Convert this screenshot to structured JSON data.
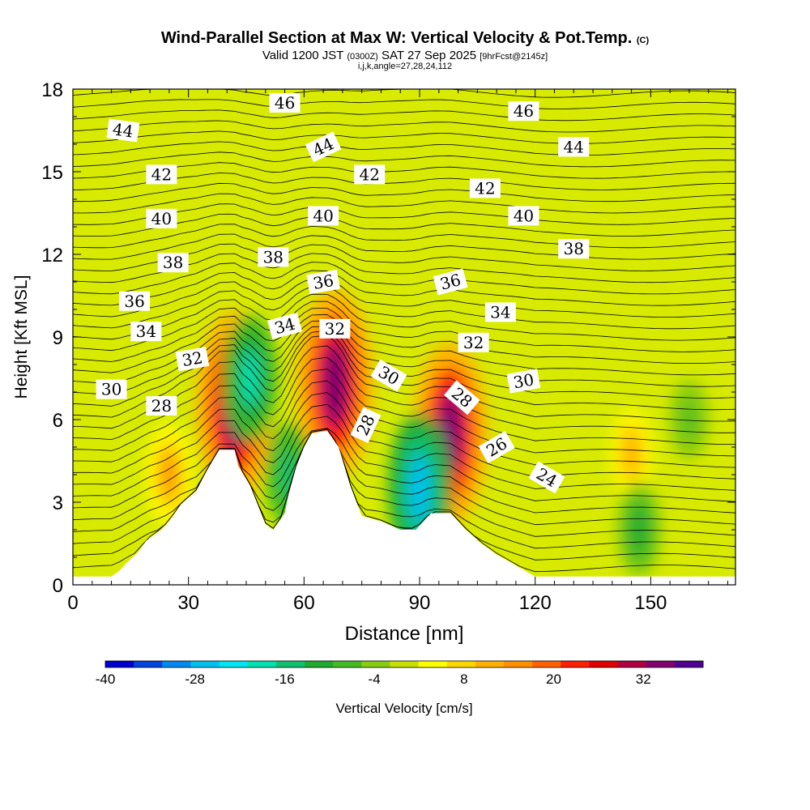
{
  "chart_data": {
    "type": "heatmap",
    "title": "Wind-Parallel Section at Max W: Vertical Velocity & Pot.Temp.",
    "title_mark": "(C)",
    "subtitle_main": "Valid 1200 JST",
    "subtitle_utc": "(0300Z)",
    "subtitle_date": "SAT 27 Sep 2025",
    "subtitle_run": "[9hrFcst@2145z]",
    "params_line": "i,j,k,angle=27,28,24,112",
    "xlabel": "Distance [nm]",
    "ylabel": "Height [Kft MSL]",
    "xlim": [
      0,
      172
    ],
    "ylim": [
      0,
      18
    ],
    "x_ticks": [
      "0",
      "30",
      "60",
      "90",
      "120",
      "150"
    ],
    "y_ticks": [
      "0",
      "3",
      "6",
      "9",
      "12",
      "15",
      "18"
    ],
    "colorbar": {
      "label": "Vertical Velocity [cm/s]",
      "range": [
        -40,
        40
      ],
      "step": 4,
      "tick_labels": [
        "-40",
        "-28",
        "-16",
        "-4",
        "8",
        "20",
        "32"
      ],
      "colors": [
        "#0000cc",
        "#0044dd",
        "#0088ee",
        "#00c0f0",
        "#00e5f0",
        "#00e0b0",
        "#10c070",
        "#20aa30",
        "#44bb22",
        "#88cc11",
        "#c8e000",
        "#ffff00",
        "#ffd700",
        "#ffb000",
        "#ff9000",
        "#ff6000",
        "#ff2000",
        "#e00000",
        "#b00040",
        "#800070",
        "#500090"
      ]
    },
    "terrain_kft": [
      [
        0,
        0.3
      ],
      [
        10,
        0.3
      ],
      [
        12,
        0.5
      ],
      [
        14,
        0.8
      ],
      [
        17,
        1.2
      ],
      [
        19,
        1.6
      ],
      [
        21,
        1.8
      ],
      [
        23,
        2
      ],
      [
        25,
        2.3
      ],
      [
        28,
        2.9
      ],
      [
        32,
        3.4
      ],
      [
        35,
        4.2
      ],
      [
        38,
        4.9
      ],
      [
        42,
        4.9
      ],
      [
        43,
        4.3
      ],
      [
        46,
        3.6
      ],
      [
        48,
        2.9
      ],
      [
        50,
        2.2
      ],
      [
        52,
        2
      ],
      [
        55,
        2.6
      ],
      [
        56,
        3.3
      ],
      [
        58,
        4.3
      ],
      [
        60,
        5
      ],
      [
        62,
        5.5
      ],
      [
        66,
        5.6
      ],
      [
        69,
        5
      ],
      [
        72,
        3.6
      ],
      [
        75,
        2.5
      ],
      [
        80,
        2.3
      ],
      [
        85,
        2
      ],
      [
        89,
        2
      ],
      [
        93,
        2.6
      ],
      [
        98,
        2.6
      ],
      [
        102,
        2
      ],
      [
        106,
        1.5
      ],
      [
        110,
        1.1
      ],
      [
        115,
        0.7
      ],
      [
        120,
        0.3
      ],
      [
        172,
        0.3
      ]
    ],
    "theta_contour_labels": [
      {
        "text": "46",
        "x": 55,
        "y": 17.5,
        "angle": 0
      },
      {
        "text": "46",
        "x": 117,
        "y": 17.2,
        "angle": 0
      },
      {
        "text": "44",
        "x": 13,
        "y": 16.5,
        "angle": 8
      },
      {
        "text": "44",
        "x": 65,
        "y": 15.9,
        "angle": -25
      },
      {
        "text": "44",
        "x": 130,
        "y": 15.9,
        "angle": 0
      },
      {
        "text": "42",
        "x": 23,
        "y": 14.9,
        "angle": 0
      },
      {
        "text": "42",
        "x": 77,
        "y": 14.9,
        "angle": 0
      },
      {
        "text": "42",
        "x": 107,
        "y": 14.4,
        "angle": 0
      },
      {
        "text": "40",
        "x": 23,
        "y": 13.3,
        "angle": 0
      },
      {
        "text": "40",
        "x": 65,
        "y": 13.4,
        "angle": 0
      },
      {
        "text": "40",
        "x": 117,
        "y": 13.4,
        "angle": 0
      },
      {
        "text": "38",
        "x": 26,
        "y": 11.7,
        "angle": 0
      },
      {
        "text": "38",
        "x": 52,
        "y": 11.9,
        "angle": 0
      },
      {
        "text": "38",
        "x": 130,
        "y": 12.2,
        "angle": 0
      },
      {
        "text": "36",
        "x": 16,
        "y": 10.3,
        "angle": 0
      },
      {
        "text": "36",
        "x": 65,
        "y": 11.0,
        "angle": -10
      },
      {
        "text": "36",
        "x": 98,
        "y": 11.0,
        "angle": -15
      },
      {
        "text": "34",
        "x": 19,
        "y": 9.2,
        "angle": 0
      },
      {
        "text": "34",
        "x": 55,
        "y": 9.4,
        "angle": -15
      },
      {
        "text": "34",
        "x": 111,
        "y": 9.9,
        "angle": 0
      },
      {
        "text": "32",
        "x": 31,
        "y": 8.2,
        "angle": -10
      },
      {
        "text": "32",
        "x": 68,
        "y": 9.3,
        "angle": 0
      },
      {
        "text": "32",
        "x": 104,
        "y": 8.8,
        "angle": 0
      },
      {
        "text": "30",
        "x": 10,
        "y": 7.1,
        "angle": 0
      },
      {
        "text": "30",
        "x": 82,
        "y": 7.6,
        "angle": 30
      },
      {
        "text": "30",
        "x": 117,
        "y": 7.4,
        "angle": -10
      },
      {
        "text": "28",
        "x": 23,
        "y": 6.5,
        "angle": 0
      },
      {
        "text": "28",
        "x": 76,
        "y": 5.8,
        "angle": -65
      },
      {
        "text": "28",
        "x": 101,
        "y": 6.8,
        "angle": 40
      },
      {
        "text": "26",
        "x": 110,
        "y": 5.0,
        "angle": -30
      },
      {
        "text": "24",
        "x": 123,
        "y": 3.9,
        "angle": 30
      }
    ],
    "vertical_velocity_cells": [
      {
        "x": 42,
        "y": 6.5,
        "value": 36
      },
      {
        "x": 68,
        "y": 7.3,
        "value": 36
      },
      {
        "x": 98,
        "y": 5.5,
        "value": 34
      },
      {
        "x": 25,
        "y": 4.0,
        "value": 14
      },
      {
        "x": 145,
        "y": 4.8,
        "value": 10
      },
      {
        "x": 90,
        "y": 3.5,
        "value": -26
      },
      {
        "x": 46,
        "y": 7.5,
        "value": -20
      },
      {
        "x": 56,
        "y": 4.0,
        "value": -14
      },
      {
        "x": 147,
        "y": 2.0,
        "value": -12
      },
      {
        "x": 160,
        "y": 6.0,
        "value": -8
      }
    ]
  }
}
